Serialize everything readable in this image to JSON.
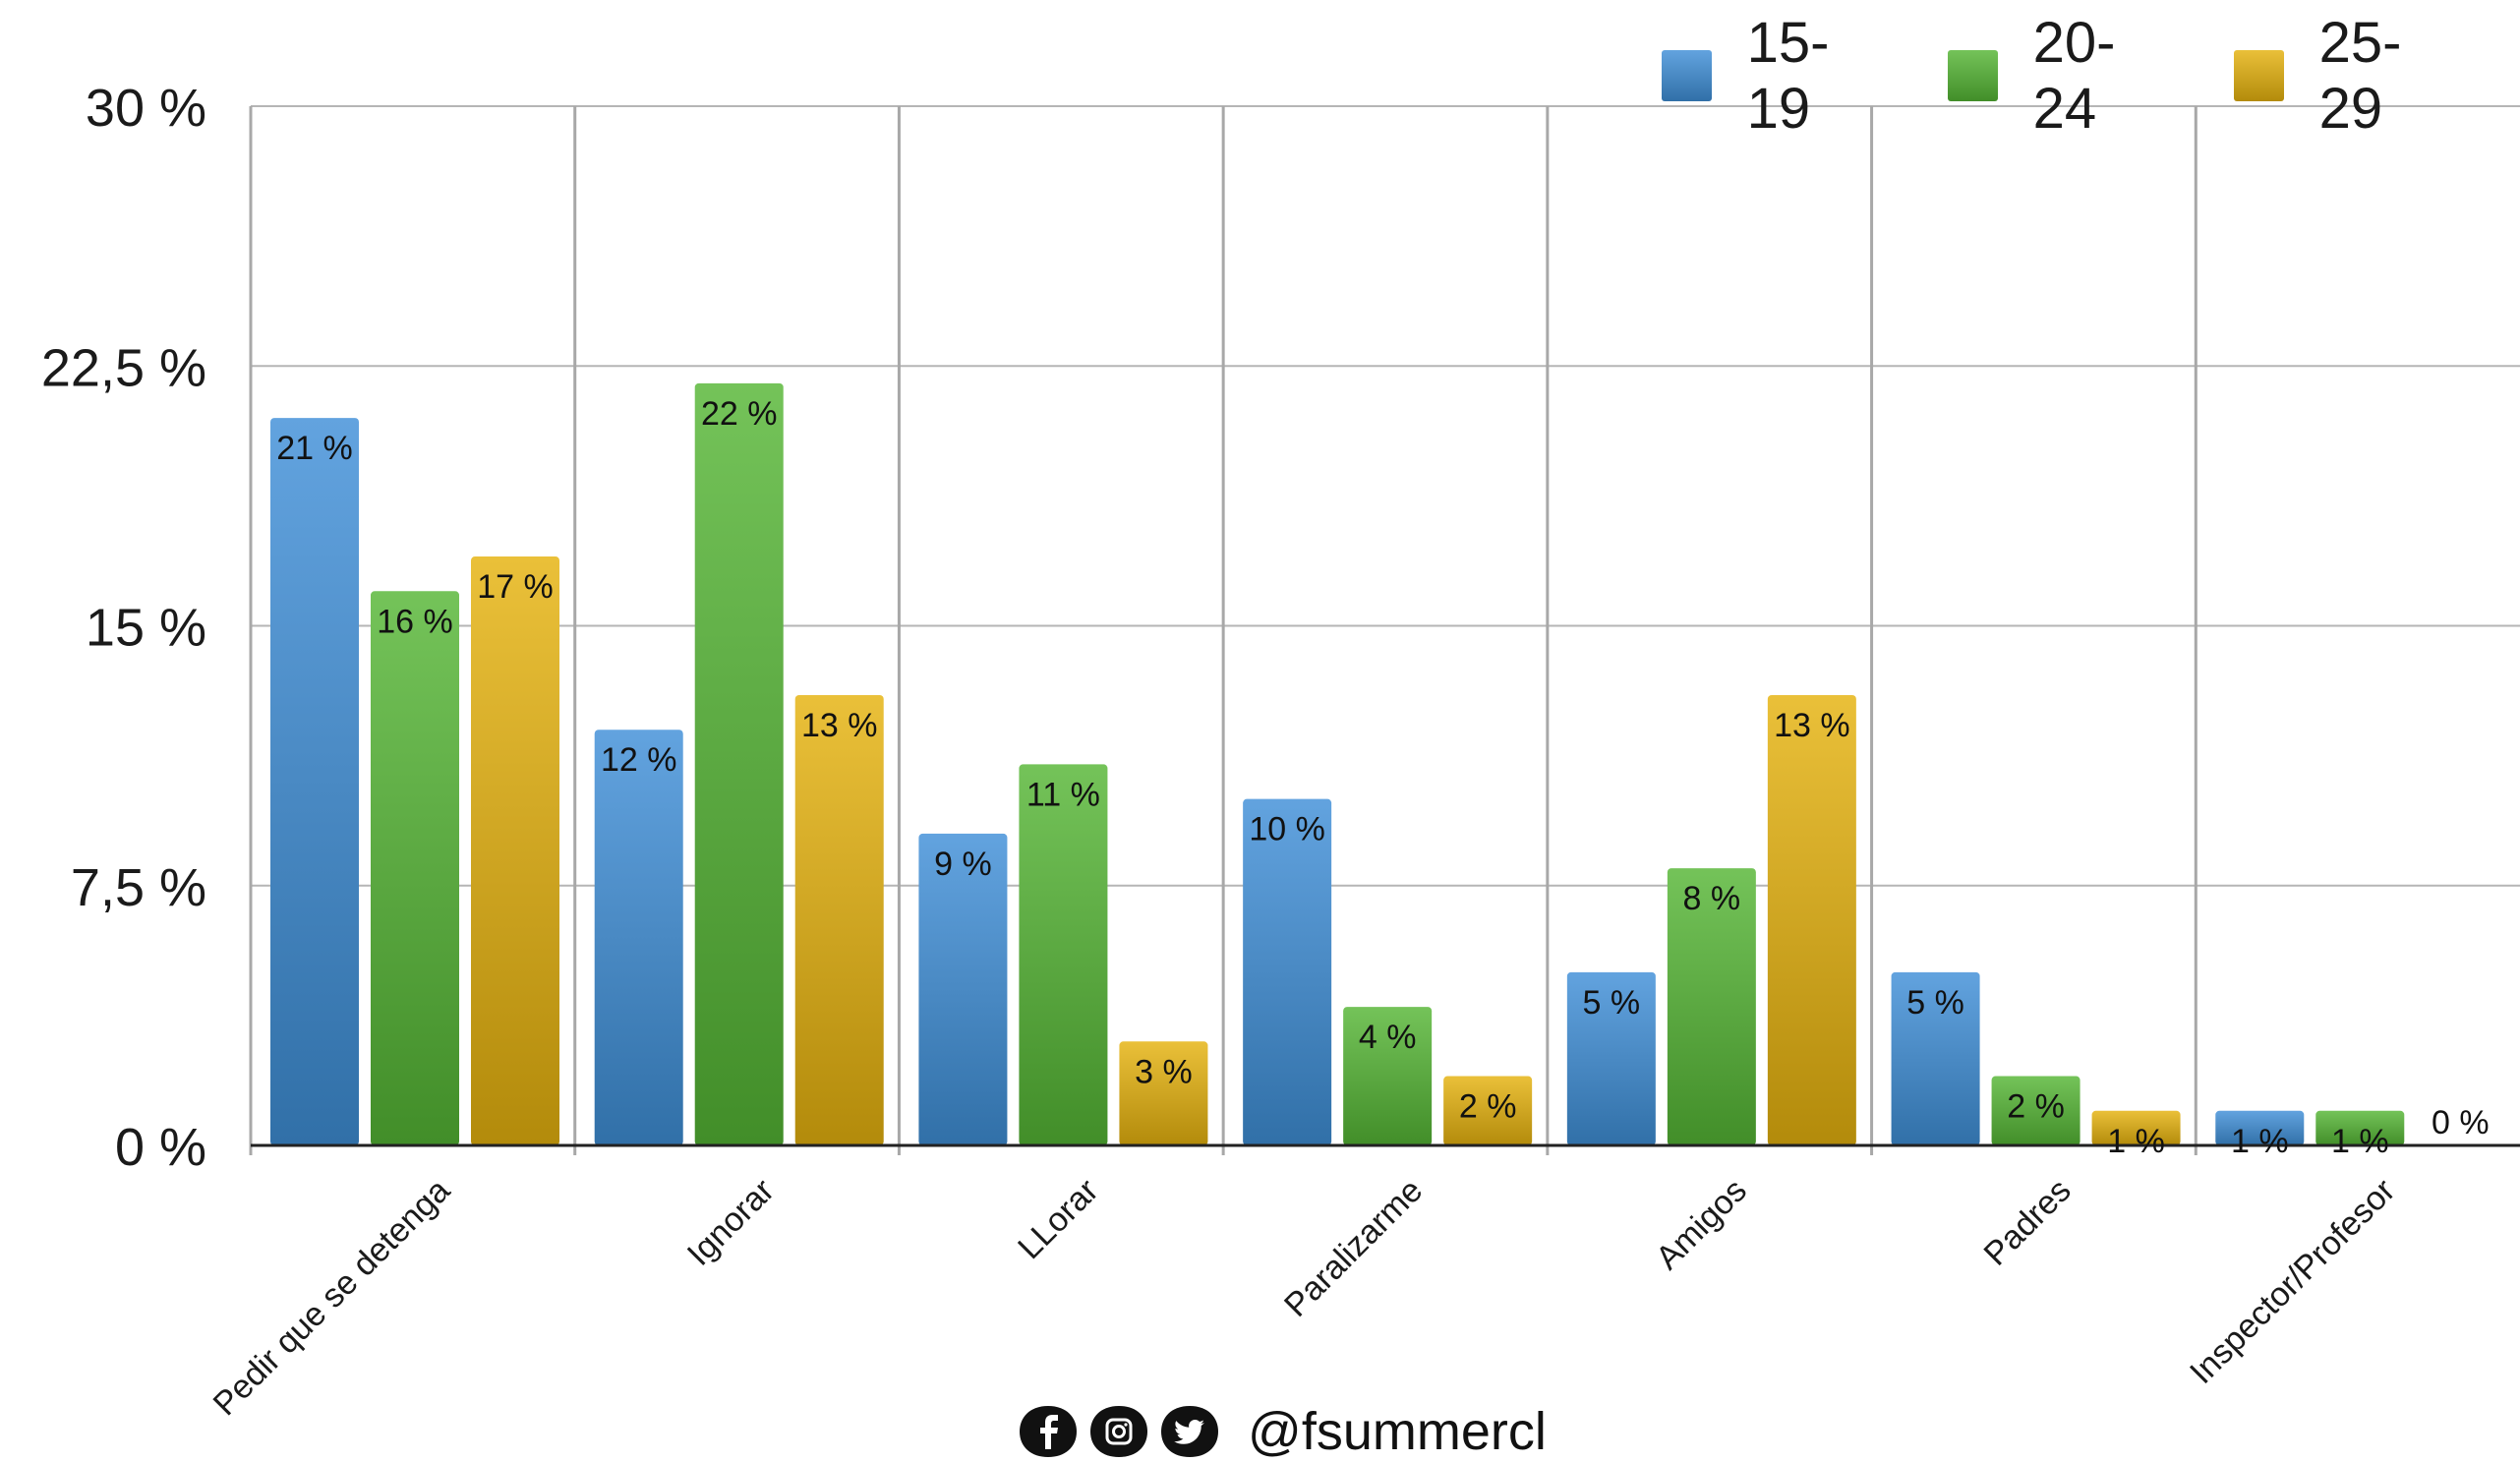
{
  "chart_data": {
    "type": "bar",
    "categories": [
      "Pedir que se detenga",
      "Ignorar",
      "LLorar",
      "Paralizarme",
      "Amigos",
      "Padres",
      "Inspector/Profesor"
    ],
    "series": [
      {
        "name": "15-19",
        "values": [
          21,
          12,
          9,
          10,
          5,
          5,
          1
        ],
        "color": "#3f8fd8"
      },
      {
        "name": "20-24",
        "values": [
          16,
          22,
          11,
          4,
          8,
          2,
          1
        ],
        "color": "#55b634"
      },
      {
        "name": "25-29",
        "values": [
          17,
          13,
          3,
          2,
          13,
          1,
          0
        ],
        "color": "#e5b20e"
      }
    ],
    "value_label_suffix": " %",
    "ylim": [
      0,
      30
    ],
    "yticks": [
      0,
      7.5,
      15,
      22.5,
      30
    ],
    "ytick_labels": [
      "0 %",
      "7,5 %",
      "15 %",
      "22,5 %",
      "30 %"
    ],
    "grid": true,
    "legend_position": "top-right"
  },
  "footer": {
    "handle": "@fsummercl",
    "icons": [
      "facebook-icon",
      "instagram-icon",
      "twitter-icon"
    ]
  }
}
